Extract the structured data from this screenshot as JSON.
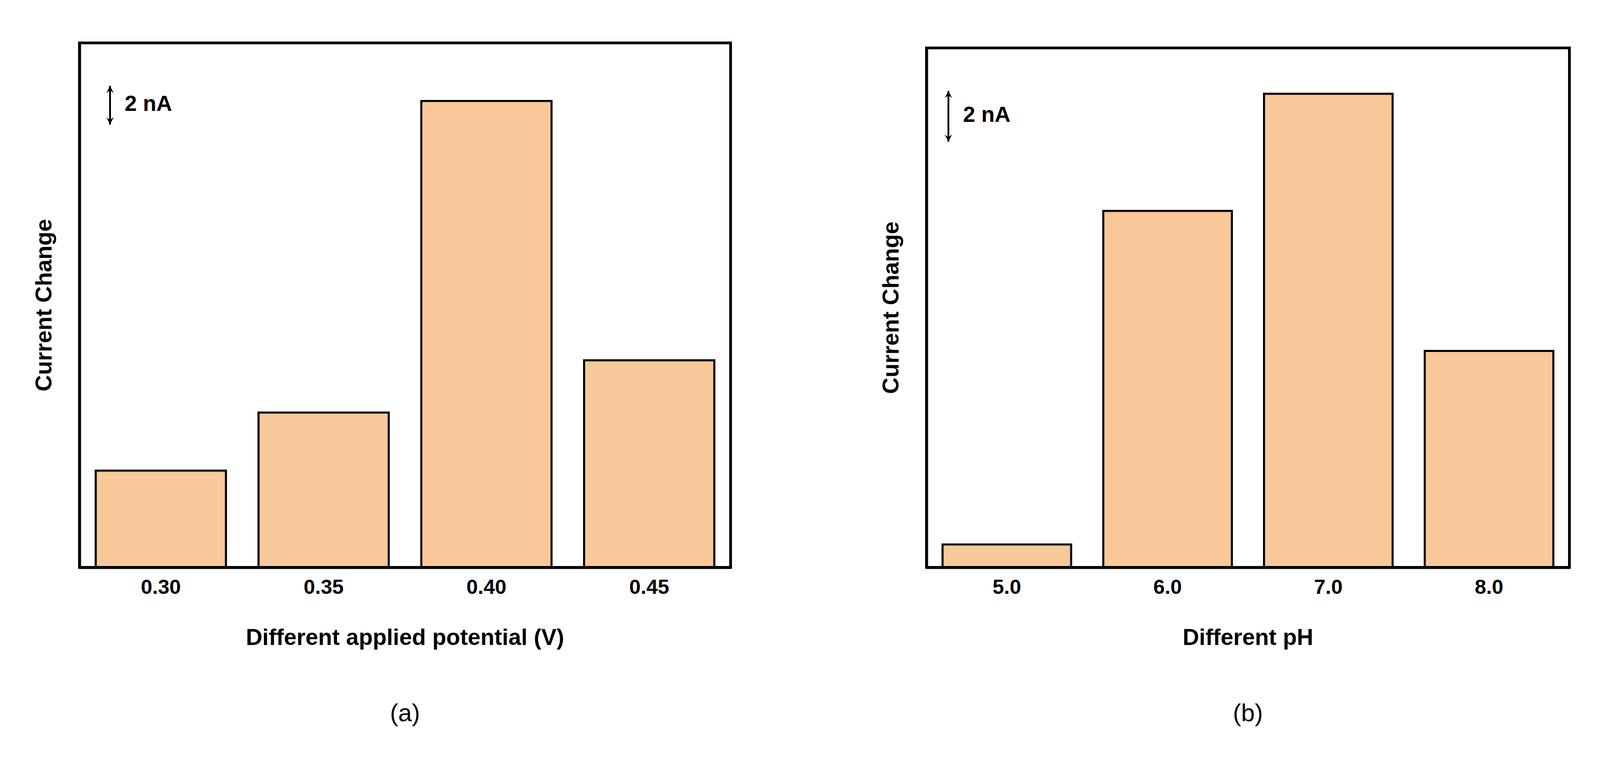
{
  "chart_data": [
    {
      "type": "bar",
      "panel_label": "(a)",
      "x_label": "Different applied potential (V)",
      "y_label": "Current Change",
      "categories": [
        "0.30",
        "0.35",
        "0.40",
        "0.45"
      ],
      "values": [
        5.0,
        8.0,
        24.1,
        10.7
      ],
      "color": "#f9c898",
      "ylim": [
        0,
        27.1
      ],
      "tick_labels": "x",
      "scale_bar": {
        "value": 2,
        "label": "2 nA"
      }
    },
    {
      "type": "bar",
      "panel_label": "(b)",
      "x_label": "Different pH",
      "y_label": "Current Change",
      "categories": [
        "5.0",
        "6.0",
        "7.0",
        "8.0"
      ],
      "values": [
        0.9,
        14.0,
        18.6,
        8.5
      ],
      "color": "#f9c898",
      "ylim": [
        0,
        20.4
      ],
      "tick_labels": "x",
      "scale_bar": {
        "value": 2,
        "label": "2 nA"
      }
    }
  ]
}
